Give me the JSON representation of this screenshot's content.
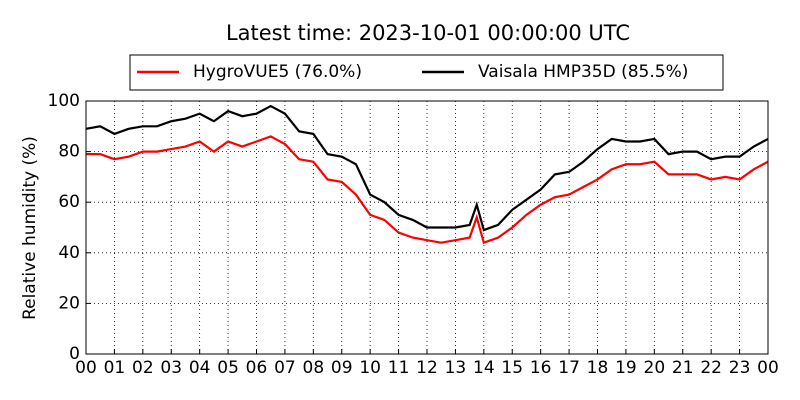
{
  "chart_data": {
    "type": "line",
    "title": "Latest time: 2023-10-01 00:00:00 UTC",
    "y_label": "Relative humidity (%)",
    "x": [
      0,
      0.5,
      1,
      1.5,
      2,
      2.5,
      3,
      3.5,
      4,
      4.5,
      5,
      5.5,
      6,
      6.5,
      7,
      7.5,
      8,
      8.5,
      9,
      9.5,
      10,
      10.5,
      11,
      11.5,
      12,
      12.5,
      13,
      13.5,
      13.75,
      14,
      14.5,
      15,
      15.5,
      16,
      16.5,
      17,
      17.5,
      18,
      18.5,
      19,
      19.5,
      20,
      20.5,
      21,
      21.5,
      22,
      22.5,
      23,
      23.5,
      24
    ],
    "series": [
      {
        "name": "HygroVUE5 (76.0%)",
        "color": "#ff0000",
        "values": [
          79,
          79,
          77,
          78,
          80,
          80,
          81,
          82,
          84,
          80,
          84,
          82,
          84,
          86,
          83,
          77,
          76,
          69,
          68,
          63,
          55,
          53,
          48,
          46,
          45,
          44,
          45,
          46,
          54,
          44,
          46,
          50,
          55,
          59,
          62,
          63,
          66,
          69,
          73,
          75,
          75,
          76,
          71,
          71,
          71,
          69,
          70,
          69,
          73,
          76
        ]
      },
      {
        "name": "Vaisala HMP35D (85.5%)",
        "color": "#000000",
        "values": [
          89,
          90,
          87,
          89,
          90,
          90,
          92,
          93,
          95,
          92,
          96,
          94,
          95,
          98,
          95,
          88,
          87,
          79,
          78,
          75,
          63,
          60,
          55,
          53,
          50,
          50,
          50,
          51,
          59,
          49,
          51,
          57,
          61,
          65,
          71,
          72,
          76,
          81,
          85,
          84,
          84,
          85,
          79,
          80,
          80,
          77,
          78,
          78,
          82,
          85
        ]
      }
    ],
    "xlim": [
      0,
      24
    ],
    "xticks": [
      {
        "value": 0,
        "label": "00"
      },
      {
        "value": 1,
        "label": "01"
      },
      {
        "value": 2,
        "label": "02"
      },
      {
        "value": 3,
        "label": "03"
      },
      {
        "value": 4,
        "label": "04"
      },
      {
        "value": 5,
        "label": "05"
      },
      {
        "value": 6,
        "label": "06"
      },
      {
        "value": 7,
        "label": "07"
      },
      {
        "value": 8,
        "label": "08"
      },
      {
        "value": 9,
        "label": "09"
      },
      {
        "value": 10,
        "label": "10"
      },
      {
        "value": 11,
        "label": "11"
      },
      {
        "value": 12,
        "label": "12"
      },
      {
        "value": 13,
        "label": "13"
      },
      {
        "value": 14,
        "label": "14"
      },
      {
        "value": 15,
        "label": "15"
      },
      {
        "value": 16,
        "label": "16"
      },
      {
        "value": 17,
        "label": "17"
      },
      {
        "value": 18,
        "label": "18"
      },
      {
        "value": 19,
        "label": "19"
      },
      {
        "value": 20,
        "label": "20"
      },
      {
        "value": 21,
        "label": "21"
      },
      {
        "value": 22,
        "label": "22"
      },
      {
        "value": 23,
        "label": "23"
      },
      {
        "value": 24,
        "label": "00"
      }
    ],
    "ylim": [
      0,
      100
    ],
    "yticks": [
      0,
      20,
      40,
      60,
      80,
      100
    ],
    "grid": true,
    "legend": "top"
  }
}
